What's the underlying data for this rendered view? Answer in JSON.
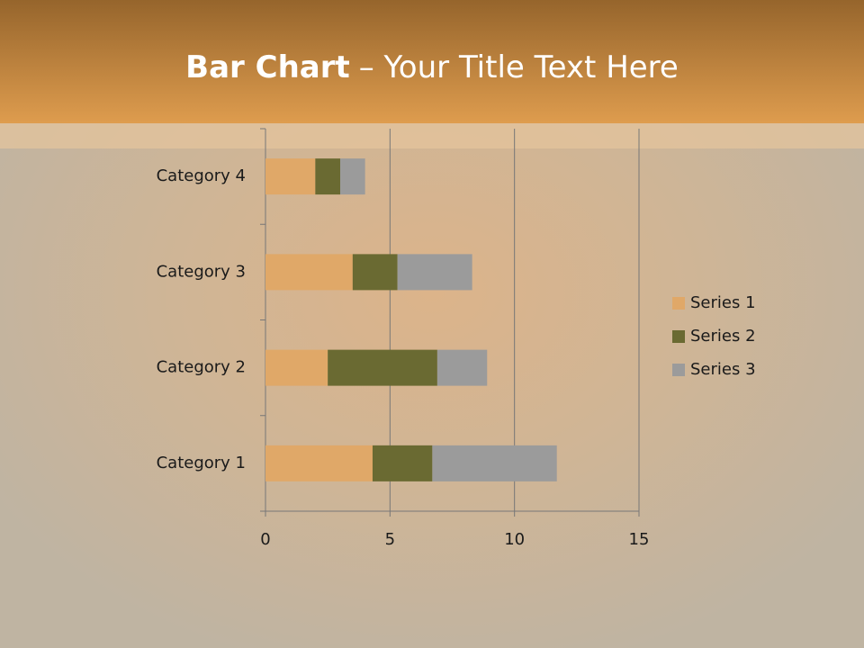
{
  "chart_data": {
    "type": "stacked-barh",
    "title": {
      "bold": "Bar Chart",
      "rest": "– Your Title Text Here"
    },
    "categories": [
      "Category 1",
      "Category 2",
      "Category 3",
      "Category 4"
    ],
    "series": [
      {
        "name": "Series 1",
        "color": "#e0a868",
        "values": [
          4.3,
          2.5,
          3.5,
          2
        ]
      },
      {
        "name": "Series 2",
        "color": "#6a6a32",
        "values": [
          2.4,
          4.4,
          1.8,
          1
        ]
      },
      {
        "name": "Series 3",
        "color": "#9b9b9b",
        "values": [
          5,
          2,
          3,
          1
        ]
      }
    ],
    "xlim": [
      0,
      15
    ],
    "xticks": [
      0,
      5,
      10,
      15
    ],
    "grid": true,
    "legend": "right"
  }
}
